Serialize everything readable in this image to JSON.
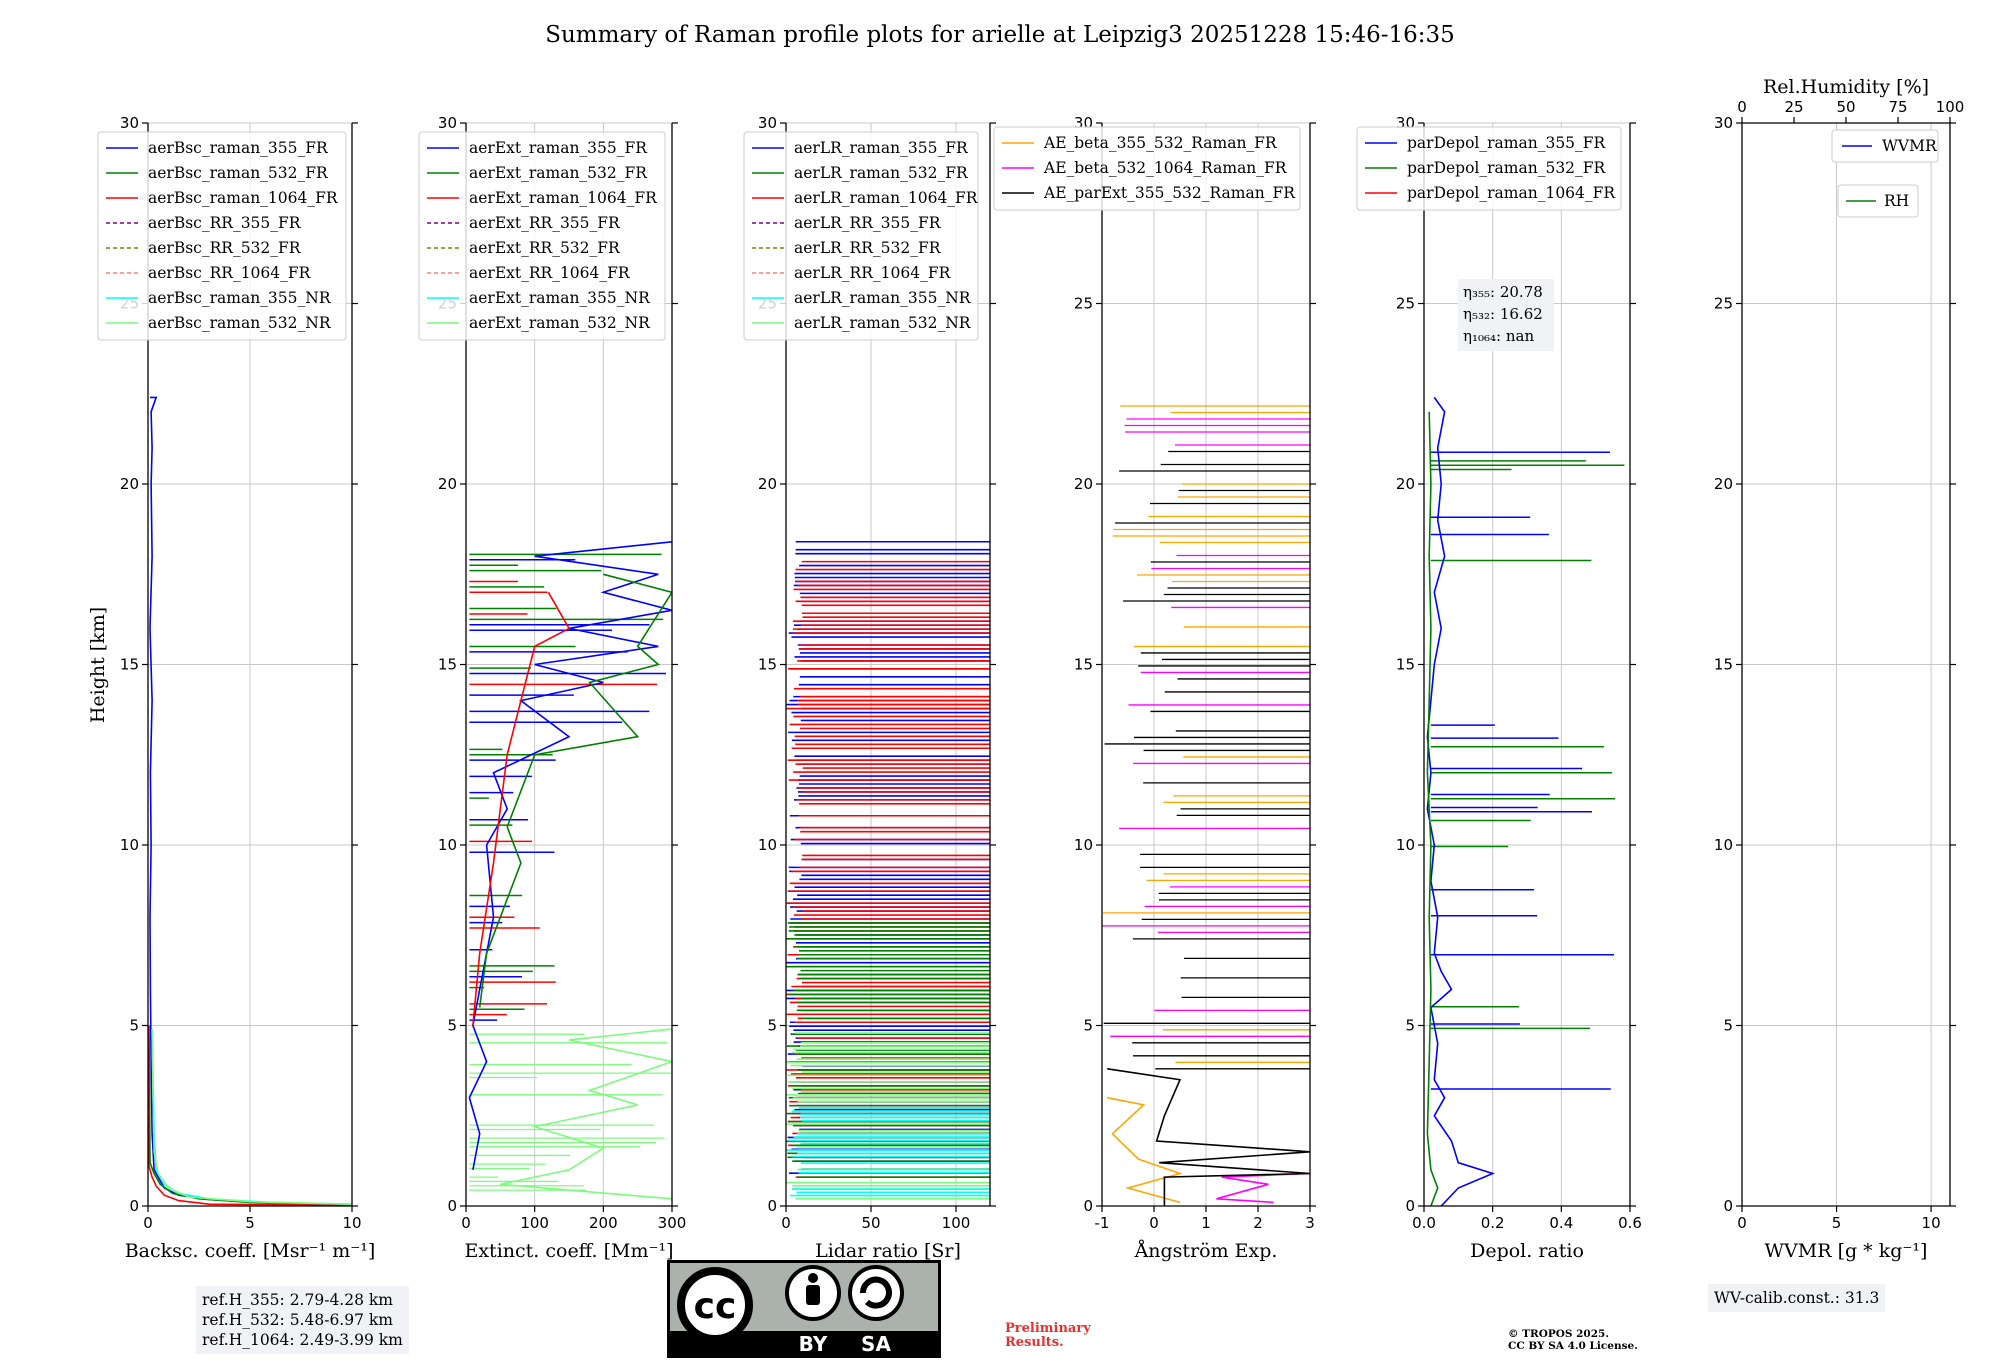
{
  "title": "Summary of Raman profile plots for arielle at Leipzig3 20251228 15:46-16:35",
  "ylabel": "Height [km]",
  "ylim": [
    0,
    30
  ],
  "yticks": [
    0,
    5,
    10,
    15,
    20,
    25,
    30
  ],
  "colors": {
    "blue": "#0000ff",
    "green": "#008000",
    "red": "#ff0000",
    "purple": "#800080",
    "olive": "#808000",
    "salmon": "#fa8072",
    "cyan": "#00ffff",
    "lightgreen": "#7cfc7c",
    "orange": "#ffa500",
    "magenta": "#ff00ff",
    "black": "#000000",
    "grid": "#c8c8c8",
    "prelim": "#e83030",
    "infobox": "#f1f2f6"
  },
  "chart_data": [
    {
      "type": "line",
      "id": "bsc",
      "xlabel": "Backsc. coeff. [Msr⁻¹ m⁻¹]",
      "xlim": [
        0,
        10
      ],
      "xticks": [
        0,
        5,
        10
      ],
      "ylim": [
        0,
        30
      ],
      "legend": [
        {
          "label": "aerBsc_raman_355_FR",
          "color": "blue",
          "dash": false
        },
        {
          "label": "aerBsc_raman_532_FR",
          "color": "green",
          "dash": false
        },
        {
          "label": "aerBsc_raman_1064_FR",
          "color": "red",
          "dash": false
        },
        {
          "label": "aerBsc_RR_355_FR",
          "color": "purple",
          "dash": true
        },
        {
          "label": "aerBsc_RR_532_FR",
          "color": "olive",
          "dash": true
        },
        {
          "label": "aerBsc_RR_1064_FR",
          "color": "salmon",
          "dash": true
        },
        {
          "label": "aerBsc_raman_355_NR",
          "color": "cyan",
          "dash": false
        },
        {
          "label": "aerBsc_raman_532_NR",
          "color": "lightgreen",
          "dash": false
        }
      ],
      "series": [
        {
          "name": "aerBsc_raman_355_FR",
          "color": "blue",
          "points": [
            [
              10,
              0.02
            ],
            [
              6,
              0.08
            ],
            [
              3,
              0.18
            ],
            [
              1.5,
              0.3
            ],
            [
              0.8,
              0.5
            ],
            [
              0.5,
              0.8
            ],
            [
              0.3,
              1.0
            ],
            [
              0.2,
              2
            ],
            [
              0.15,
              4
            ],
            [
              0.12,
              6
            ],
            [
              0.1,
              8
            ],
            [
              0.15,
              10
            ],
            [
              0.12,
              12
            ],
            [
              0.2,
              14
            ],
            [
              0.1,
              16
            ],
            [
              0.2,
              18
            ],
            [
              0.15,
              20
            ],
            [
              0.2,
              21
            ],
            [
              0.15,
              22
            ],
            [
              0.4,
              22.4
            ],
            [
              0.1,
              22.4
            ]
          ]
        },
        {
          "name": "aerBsc_raman_532_FR",
          "color": "green",
          "points": [
            [
              10,
              0.02
            ],
            [
              5,
              0.1
            ],
            [
              2.5,
              0.2
            ],
            [
              1.2,
              0.35
            ],
            [
              0.6,
              0.6
            ],
            [
              0.3,
              0.9
            ],
            [
              0.1,
              1.2
            ],
            [
              0.05,
              5
            ]
          ]
        },
        {
          "name": "aerBsc_raman_1064_FR",
          "color": "red",
          "points": [
            [
              10,
              0.02
            ],
            [
              3,
              0.05
            ],
            [
              1.5,
              0.15
            ],
            [
              0.8,
              0.3
            ],
            [
              0.4,
              0.55
            ],
            [
              0.2,
              0.8
            ],
            [
              0.05,
              1.1
            ],
            [
              0.02,
              5
            ]
          ]
        },
        {
          "name": "aerBsc_raman_355_NR",
          "color": "cyan",
          "points": [
            [
              10,
              0.05
            ],
            [
              6,
              0.1
            ],
            [
              3,
              0.2
            ],
            [
              1.5,
              0.35
            ],
            [
              0.8,
              0.6
            ],
            [
              0.4,
              1.0
            ],
            [
              0.3,
              2
            ],
            [
              0.25,
              3.5
            ],
            [
              0.2,
              4.9
            ]
          ]
        },
        {
          "name": "aerBsc_raman_532_NR",
          "color": "lightgreen",
          "points": [
            [
              10,
              0.05
            ],
            [
              5,
              0.12
            ],
            [
              2,
              0.25
            ],
            [
              1,
              0.5
            ],
            [
              0.5,
              0.9
            ],
            [
              0.3,
              1.5
            ],
            [
              0.25,
              3
            ],
            [
              0.2,
              4.9
            ]
          ]
        }
      ]
    },
    {
      "type": "line",
      "id": "ext",
      "xlabel": "Extinct. coeff. [Mm⁻¹]",
      "xlim": [
        0,
        300
      ],
      "xticks": [
        0,
        100,
        200,
        300
      ],
      "ylim": [
        0,
        30
      ],
      "legend": [
        {
          "label": "aerExt_raman_355_FR",
          "color": "blue",
          "dash": false
        },
        {
          "label": "aerExt_raman_532_FR",
          "color": "green",
          "dash": false
        },
        {
          "label": "aerExt_raman_1064_FR",
          "color": "red",
          "dash": false
        },
        {
          "label": "aerExt_RR_355_FR",
          "color": "purple",
          "dash": true
        },
        {
          "label": "aerExt_RR_532_FR",
          "color": "olive",
          "dash": true
        },
        {
          "label": "aerExt_RR_1064_FR",
          "color": "salmon",
          "dash": true
        },
        {
          "label": "aerExt_raman_355_NR",
          "color": "cyan",
          "dash": false
        },
        {
          "label": "aerExt_raman_532_NR",
          "color": "lightgreen",
          "dash": false
        }
      ],
      "series": [
        {
          "name": "aerExt_raman_355_FR",
          "color": "blue",
          "points": [
            [
              10,
              1
            ],
            [
              20,
              2
            ],
            [
              5,
              3
            ],
            [
              30,
              4
            ],
            [
              10,
              5
            ],
            [
              20,
              6
            ],
            [
              40,
              8
            ],
            [
              30,
              10
            ],
            [
              60,
              11
            ],
            [
              40,
              12
            ],
            [
              150,
              13
            ],
            [
              80,
              14
            ],
            [
              200,
              14.5
            ],
            [
              100,
              15
            ],
            [
              280,
              15.5
            ],
            [
              150,
              16
            ],
            [
              300,
              16.5
            ],
            [
              200,
              17
            ],
            [
              280,
              17.5
            ],
            [
              100,
              18
            ],
            [
              300,
              18.4
            ]
          ]
        },
        {
          "name": "aerExt_raman_532_FR",
          "color": "green",
          "points": [
            [
              20,
              5.5
            ],
            [
              30,
              7
            ],
            [
              80,
              9.5
            ],
            [
              60,
              10.5
            ],
            [
              100,
              12.5
            ],
            [
              250,
              13
            ],
            [
              180,
              14.5
            ],
            [
              280,
              15
            ],
            [
              250,
              15.5
            ],
            [
              300,
              17
            ],
            [
              200,
              17.5
            ]
          ]
        },
        {
          "name": "aerExt_raman_1064_FR",
          "color": "red",
          "points": [
            [
              10,
              5
            ],
            [
              20,
              7
            ],
            [
              40,
              9.5
            ],
            [
              50,
              11
            ],
            [
              60,
              12.5
            ],
            [
              80,
              14
            ],
            [
              100,
              15.5
            ],
            [
              150,
              16
            ],
            [
              120,
              17
            ]
          ]
        },
        {
          "name": "aerExt_raman_532_NR",
          "color": "lightgreen",
          "points": [
            [
              300,
              0.2
            ],
            [
              50,
              0.6
            ],
            [
              150,
              1
            ],
            [
              200,
              1.6
            ],
            [
              100,
              2.2
            ],
            [
              250,
              2.8
            ],
            [
              180,
              3.2
            ],
            [
              300,
              4
            ],
            [
              150,
              4.6
            ],
            [
              300,
              4.9
            ]
          ]
        }
      ]
    },
    {
      "type": "line",
      "id": "lr",
      "xlabel": "Lidar ratio [Sr]",
      "xlim": [
        0,
        120
      ],
      "xticks": [
        0,
        50,
        100
      ],
      "ylim": [
        0,
        30
      ],
      "legend": [
        {
          "label": "aerLR_raman_355_FR",
          "color": "blue",
          "dash": false
        },
        {
          "label": "aerLR_raman_532_FR",
          "color": "green",
          "dash": false
        },
        {
          "label": "aerLR_raman_1064_FR",
          "color": "red",
          "dash": false
        },
        {
          "label": "aerLR_RR_355_FR",
          "color": "purple",
          "dash": true
        },
        {
          "label": "aerLR_RR_532_FR",
          "color": "olive",
          "dash": true
        },
        {
          "label": "aerLR_RR_1064_FR",
          "color": "salmon",
          "dash": true
        },
        {
          "label": "aerLR_raman_355_NR",
          "color": "cyan",
          "dash": false
        },
        {
          "label": "aerLR_raman_532_NR",
          "color": "lightgreen",
          "dash": false
        }
      ],
      "series": []
    },
    {
      "type": "line",
      "id": "ae",
      "xlabel": "Ångström Exp.",
      "xlim": [
        -1,
        3
      ],
      "xticks": [
        -1,
        0,
        1,
        2,
        3
      ],
      "ylim": [
        0,
        30
      ],
      "legend": [
        {
          "label": "AE_beta_355_532_Raman_FR",
          "color": "orange",
          "dash": false
        },
        {
          "label": "AE_beta_532_1064_Raman_FR",
          "color": "magenta",
          "dash": false
        },
        {
          "label": "AE_parExt_355_532_Raman_FR",
          "color": "black",
          "dash": false
        }
      ],
      "series": [
        {
          "name": "AE_beta_355_532_Raman_FR",
          "color": "orange",
          "points": [
            [
              0.5,
              0.1
            ],
            [
              -0.5,
              0.5
            ],
            [
              0.5,
              0.9
            ],
            [
              -0.3,
              1.3
            ],
            [
              -0.8,
              2.0
            ],
            [
              -0.2,
              2.8
            ],
            [
              -0.9,
              3.0
            ]
          ]
        },
        {
          "name": "AE_beta_532_1064_Raman_FR",
          "color": "magenta",
          "points": [
            [
              2.3,
              0.1
            ],
            [
              1.2,
              0.2
            ],
            [
              2.2,
              0.6
            ],
            [
              1.3,
              0.8
            ],
            [
              3,
              0.9
            ]
          ]
        },
        {
          "name": "AE_parExt_355_532_Raman_FR",
          "color": "black",
          "points": [
            [
              0.2,
              0
            ],
            [
              0.2,
              0.8
            ],
            [
              3,
              0.9
            ],
            [
              0.1,
              1.2
            ],
            [
              3,
              1.5
            ],
            [
              0.05,
              1.8
            ],
            [
              0.2,
              2.5
            ],
            [
              0.5,
              3.5
            ],
            [
              -0.9,
              3.8
            ]
          ]
        }
      ]
    },
    {
      "type": "line",
      "id": "dep",
      "xlabel": "Depol. ratio",
      "xlim": [
        0,
        0.6
      ],
      "xticks": [
        0.0,
        0.2,
        0.4,
        0.6
      ],
      "ylim": [
        0,
        30
      ],
      "legend": [
        {
          "label": "parDepol_raman_355_FR",
          "color": "blue",
          "dash": false
        },
        {
          "label": "parDepol_raman_532_FR",
          "color": "green",
          "dash": false
        },
        {
          "label": "parDepol_raman_1064_FR",
          "color": "red",
          "dash": false
        }
      ],
      "annotation": [
        "η₃₅₅: 20.78",
        "η₅₃₂: 16.62",
        "η₁₀₆₄: nan"
      ],
      "series": [
        {
          "name": "parDepol_raman_355_FR",
          "color": "blue",
          "points": [
            [
              0.05,
              0
            ],
            [
              0.1,
              0.5
            ],
            [
              0.2,
              0.9
            ],
            [
              0.1,
              1.2
            ],
            [
              0.08,
              1.8
            ],
            [
              0.03,
              2.5
            ],
            [
              0.06,
              3
            ],
            [
              0.03,
              3.5
            ],
            [
              0.04,
              4.5
            ],
            [
              0.02,
              5.5
            ],
            [
              0.08,
              6
            ],
            [
              0.05,
              6.5
            ],
            [
              0.03,
              7
            ],
            [
              0.04,
              8
            ],
            [
              0.02,
              9
            ],
            [
              0.03,
              10
            ],
            [
              0.01,
              11
            ],
            [
              0.02,
              12
            ],
            [
              0.01,
              13
            ],
            [
              0.02,
              14
            ],
            [
              0.03,
              15
            ],
            [
              0.05,
              16
            ],
            [
              0.03,
              17
            ],
            [
              0.06,
              18
            ],
            [
              0.04,
              19
            ],
            [
              0.05,
              20
            ],
            [
              0.04,
              21
            ],
            [
              0.06,
              22
            ],
            [
              0.03,
              22.4
            ]
          ]
        },
        {
          "name": "parDepol_raman_532_FR",
          "color": "green",
          "points": [
            [
              0.02,
              0
            ],
            [
              0.04,
              0.5
            ],
            [
              0.02,
              1
            ],
            [
              0.01,
              2
            ],
            [
              0.015,
              4
            ],
            [
              0.02,
              6
            ],
            [
              0.015,
              8
            ],
            [
              0.02,
              10
            ],
            [
              0.01,
              12
            ],
            [
              0.015,
              14
            ],
            [
              0.02,
              16
            ],
            [
              0.015,
              18
            ],
            [
              0.02,
              20
            ],
            [
              0.015,
              22
            ]
          ]
        }
      ]
    },
    {
      "type": "line",
      "id": "wv",
      "xlabel": "WVMR [g * kg⁻¹]",
      "xlim": [
        0,
        11
      ],
      "xticks": [
        0,
        5,
        10
      ],
      "ylim": [
        0,
        30
      ],
      "top_xlabel": "Rel.Humidity [%]",
      "top_xlim": [
        0,
        100
      ],
      "top_xticks": [
        0,
        25,
        50,
        75,
        100
      ],
      "legend": [
        {
          "label": "WVMR",
          "color": "blue",
          "dash": false
        },
        {
          "label": "RH",
          "color": "green",
          "dash": false
        }
      ],
      "series": []
    }
  ],
  "info": {
    "refh": [
      "ref.H_355: 2.79-4.28 km",
      "ref.H_532: 5.48-6.97 km",
      "ref.H_1064: 2.49-3.99 km"
    ],
    "wv_calib": "WV-calib.const.: 31.3",
    "prelim": [
      "Preliminary",
      "Results."
    ],
    "copyright": [
      "© TROPOS 2025.",
      "CC BY SA 4.0 License."
    ],
    "license_badge": {
      "big": "cc",
      "by": "BY",
      "sa": "SA"
    }
  }
}
